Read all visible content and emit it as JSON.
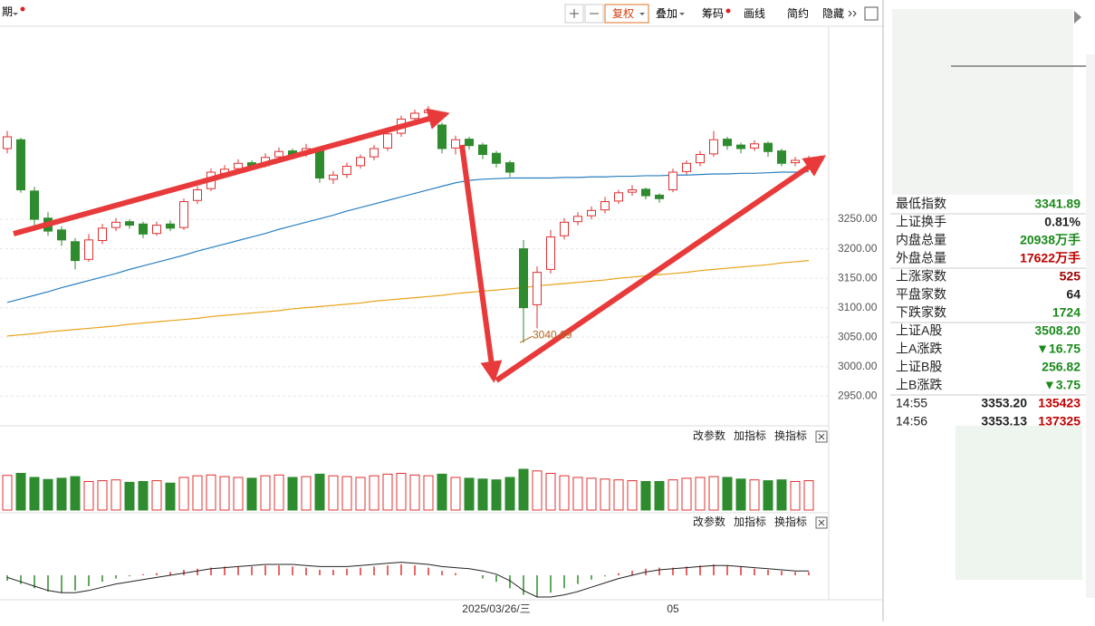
{
  "toolbar": {
    "period": "期",
    "buttons": [
      "复权",
      "叠加",
      "筹码",
      "画线",
      "简约",
      "隐藏"
    ]
  },
  "chart_data": {
    "type": "candlestick",
    "ylim": [
      2915,
      3576
    ],
    "yticks": [
      {
        "value": 3250,
        "label": "3250.00"
      },
      {
        "value": 3200,
        "label": "3200.00"
      },
      {
        "value": 3150,
        "label": "3150.00"
      },
      {
        "value": 3100,
        "label": "3100.00"
      },
      {
        "value": 3050,
        "label": "3050.00"
      },
      {
        "value": 3000,
        "label": "3000.00"
      },
      {
        "value": 2950,
        "label": "2950.00"
      }
    ],
    "grid": true,
    "up_color": "#e03030",
    "down_color": "#2e8b2e",
    "categories": [
      null,
      null,
      null,
      null,
      null,
      null,
      null,
      null,
      null,
      null,
      null,
      null,
      null,
      null,
      null,
      null,
      null,
      null,
      null,
      null,
      null,
      null,
      null,
      null,
      null,
      null,
      null,
      null,
      null,
      null,
      null,
      null,
      null,
      null,
      null,
      null,
      "2025/03/26/三",
      null,
      null,
      null,
      null,
      null,
      null,
      null,
      null,
      null,
      null,
      null,
      null,
      "05",
      null,
      null,
      null,
      null,
      null,
      null,
      null,
      null,
      null,
      null
    ],
    "candles": [
      [
        3370,
        3400,
        3362,
        3390
      ],
      [
        3385,
        3388,
        3295,
        3300
      ],
      [
        3298,
        3305,
        3240,
        3250
      ],
      [
        3252,
        3262,
        3222,
        3230
      ],
      [
        3232,
        3238,
        3205,
        3215
      ],
      [
        3212,
        3218,
        3165,
        3180
      ],
      [
        3182,
        3225,
        3178,
        3215
      ],
      [
        3214,
        3242,
        3208,
        3235
      ],
      [
        3236,
        3252,
        3230,
        3245
      ],
      [
        3246,
        3250,
        3234,
        3240
      ],
      [
        3242,
        3246,
        3218,
        3225
      ],
      [
        3226,
        3246,
        3222,
        3240
      ],
      [
        3242,
        3248,
        3230,
        3235
      ],
      [
        3236,
        3285,
        3232,
        3280
      ],
      [
        3282,
        3306,
        3276,
        3300
      ],
      [
        3302,
        3336,
        3298,
        3330
      ],
      [
        3328,
        3342,
        3322,
        3335
      ],
      [
        3336,
        3352,
        3330,
        3345
      ],
      [
        3346,
        3350,
        3334,
        3340
      ],
      [
        3341,
        3362,
        3338,
        3355
      ],
      [
        3356,
        3372,
        3350,
        3365
      ],
      [
        3366,
        3370,
        3352,
        3360
      ],
      [
        3361,
        3378,
        3356,
        3370
      ],
      [
        3368,
        3372,
        3312,
        3320
      ],
      [
        3318,
        3332,
        3310,
        3325
      ],
      [
        3326,
        3346,
        3320,
        3340
      ],
      [
        3341,
        3360,
        3336,
        3355
      ],
      [
        3356,
        3376,
        3350,
        3370
      ],
      [
        3371,
        3400,
        3366,
        3395
      ],
      [
        3396,
        3426,
        3390,
        3420
      ],
      [
        3421,
        3436,
        3415,
        3430
      ],
      [
        3431,
        3442,
        3424,
        3435
      ],
      [
        3410,
        3414,
        3362,
        3370
      ],
      [
        3371,
        3392,
        3360,
        3385
      ],
      [
        3386,
        3390,
        3368,
        3375
      ],
      [
        3376,
        3380,
        3352,
        3360
      ],
      [
        3362,
        3366,
        3338,
        3345
      ],
      [
        3346,
        3350,
        3322,
        3330
      ],
      [
        3200,
        3215,
        3040.69,
        3100
      ],
      [
        3105,
        3170,
        3065,
        3160
      ],
      [
        3165,
        3232,
        3158,
        3220
      ],
      [
        3222,
        3252,
        3216,
        3245
      ],
      [
        3246,
        3262,
        3240,
        3255
      ],
      [
        3256,
        3272,
        3250,
        3265
      ],
      [
        3266,
        3288,
        3260,
        3280
      ],
      [
        3281,
        3300,
        3276,
        3295
      ],
      [
        3296,
        3308,
        3290,
        3300
      ],
      [
        3301,
        3304,
        3284,
        3290
      ],
      [
        3291,
        3294,
        3278,
        3285
      ],
      [
        3300,
        3336,
        3296,
        3330
      ],
      [
        3331,
        3350,
        3326,
        3345
      ],
      [
        3346,
        3366,
        3340,
        3360
      ],
      [
        3361,
        3400,
        3356,
        3385
      ],
      [
        3386,
        3390,
        3368,
        3375
      ],
      [
        3376,
        3380,
        3362,
        3370
      ],
      [
        3371,
        3384,
        3366,
        3378
      ],
      [
        3379,
        3382,
        3356,
        3365
      ],
      [
        3366,
        3370,
        3340,
        3345
      ],
      [
        3346,
        3356,
        3340,
        3350
      ],
      [
        3351,
        3358,
        3341.89,
        3353.2
      ]
    ],
    "ma": [
      {
        "color": "#e8a317",
        "values": [
          3052,
          3054,
          3056,
          3059,
          3061,
          3063,
          3065,
          3067,
          3069,
          3072,
          3074,
          3076,
          3078,
          3080,
          3082,
          3085,
          3087,
          3089,
          3091,
          3093,
          3095,
          3098,
          3100,
          3102,
          3104,
          3106,
          3108,
          3111,
          3113,
          3115,
          3117,
          3119,
          3121,
          3124,
          3126,
          3128,
          3130,
          3132,
          3134,
          3137,
          3139,
          3141,
          3143,
          3145,
          3147,
          3150,
          3152,
          3154,
          3156,
          3158,
          3160,
          3163,
          3165,
          3167,
          3169,
          3171,
          3173,
          3176,
          3178,
          3180
        ]
      },
      {
        "color": "#2a7fc0",
        "values": [
          3109,
          3115,
          3121,
          3127,
          3134,
          3140,
          3146,
          3152,
          3158,
          3165,
          3171,
          3177,
          3183,
          3189,
          3196,
          3202,
          3208,
          3214,
          3220,
          3226,
          3233,
          3239,
          3245,
          3251,
          3257,
          3264,
          3270,
          3276,
          3282,
          3288,
          3294,
          3300,
          3306,
          3312,
          3316,
          3318,
          3319,
          3320,
          3320,
          3320,
          3320,
          3321,
          3321,
          3322,
          3322,
          3323,
          3323,
          3324,
          3324,
          3325,
          3325,
          3326,
          3327,
          3327,
          3328,
          3328,
          3329,
          3330,
          3330,
          3331
        ]
      }
    ],
    "volume": [
      85,
      90,
      80,
      75,
      78,
      82,
      70,
      72,
      74,
      68,
      70,
      72,
      66,
      80,
      84,
      86,
      82,
      80,
      78,
      84,
      86,
      80,
      82,
      88,
      84,
      82,
      80,
      84,
      88,
      90,
      86,
      84,
      88,
      80,
      78,
      76,
      74,
      80,
      100,
      96,
      90,
      84,
      80,
      78,
      76,
      74,
      72,
      70,
      70,
      74,
      78,
      80,
      82,
      80,
      76,
      74,
      72,
      74,
      70,
      72
    ],
    "macd": [
      -5,
      -8,
      -12,
      -15,
      -16,
      -14,
      -10,
      -6,
      -3,
      -1,
      1,
      2,
      3,
      5,
      6,
      7,
      8,
      8,
      8,
      9,
      9,
      8,
      7,
      5,
      5,
      6,
      7,
      8,
      9,
      10,
      9,
      7,
      4,
      2,
      0,
      -3,
      -6,
      -12,
      -18,
      -20,
      -16,
      -12,
      -8,
      -4,
      -1,
      2,
      4,
      6,
      7,
      7,
      8,
      9,
      10,
      9,
      8,
      6,
      5,
      4,
      3,
      3
    ],
    "dif": [
      -2,
      -6,
      -10,
      -14,
      -16,
      -16,
      -14,
      -11,
      -8,
      -6,
      -4,
      -2,
      0,
      2,
      4,
      6,
      7,
      8,
      9,
      10,
      10,
      10,
      9,
      8,
      8,
      8,
      9,
      10,
      11,
      12,
      11,
      10,
      8,
      7,
      6,
      4,
      1,
      -5,
      -14,
      -20,
      -20,
      -18,
      -15,
      -11,
      -7,
      -3,
      0,
      3,
      5,
      6,
      7,
      8,
      9,
      9,
      8,
      7,
      6,
      5,
      4,
      4
    ],
    "panel_buttons": [
      "改参数",
      "加指标",
      "换指标"
    ]
  },
  "quote_panel": {
    "rows": [
      [
        "最低指数",
        "3341.89"
      ],
      [
        "上证换手",
        "0.81%"
      ],
      [
        "内盘总量",
        "20938万手"
      ],
      [
        "外盘总量",
        "17622万手"
      ],
      [
        "上涨家数",
        "525"
      ],
      [
        "平盘家数",
        "64"
      ],
      [
        "下跌家数",
        "1724"
      ],
      [
        "上证A股",
        "3508.20"
      ],
      [
        "上A涨跌",
        "▼16.75"
      ],
      [
        "上证B股",
        "256.82"
      ],
      [
        "上B涨跌",
        "▼3.75"
      ]
    ],
    "ticks": [
      [
        "14:55",
        "3353.20",
        "135423"
      ],
      [
        "14:56",
        "3353.13",
        "137325"
      ]
    ]
  }
}
